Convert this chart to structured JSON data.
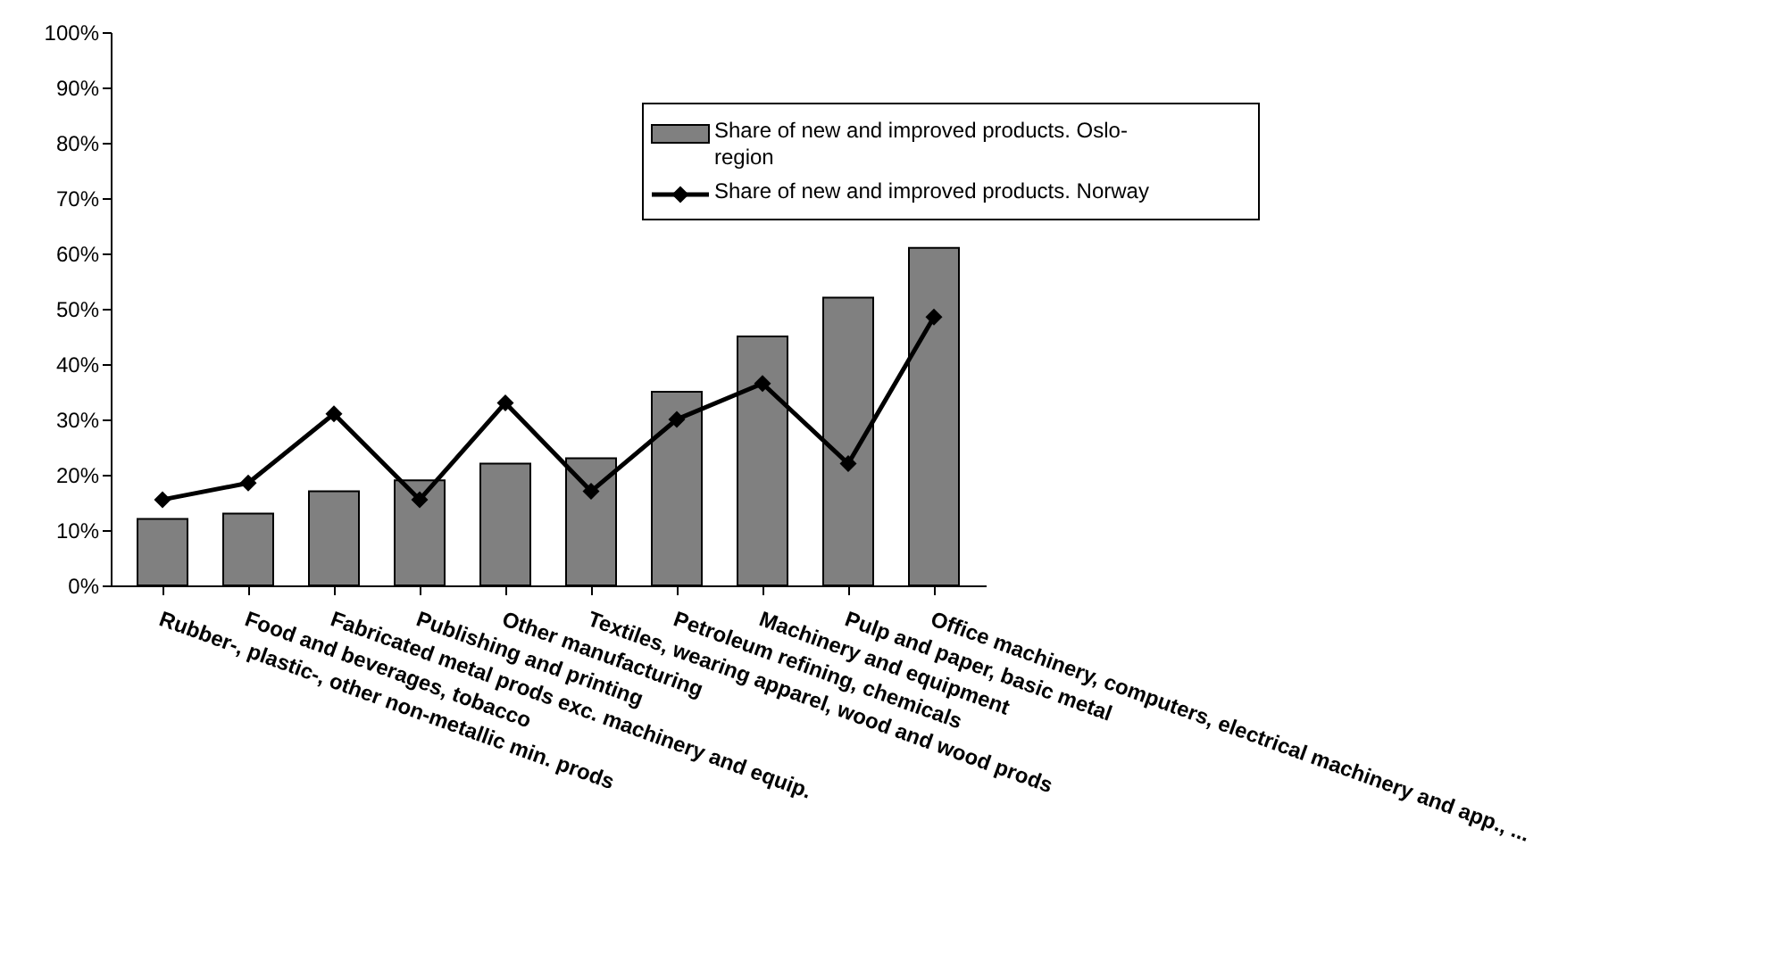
{
  "chart_data": {
    "type": "bar",
    "categories": [
      "Rubber-, plastic-, other non-metallic min. prods",
      "Food and beverages, tobacco",
      "Fabricated metal prods exc. machinery and equip.",
      "Publishing and printing",
      "Other manufacturing",
      "Textiles, wearing apparel, wood and wood prods",
      "Petroleum refining, chemicals",
      "Machinery and equipment",
      "Pulp and paper, basic metal",
      "Office machinery, computers, electrical machinery and app., ..."
    ],
    "series": [
      {
        "name": "Share of new and improved products. Oslo-region",
        "color": "#808080",
        "values": [
          12,
          13,
          17,
          19,
          22,
          23,
          35,
          45,
          52,
          61
        ]
      },
      {
        "name": "Share of new and improved products. Norway",
        "type": "line",
        "color": "#000000",
        "marker": "diamond",
        "line_style": "solid",
        "values": [
          15.5,
          18.5,
          31,
          15.5,
          33,
          17,
          30,
          36.5,
          22,
          48.5
        ]
      }
    ],
    "ylim": [
      0,
      100
    ],
    "yticks": [
      {
        "value": 0,
        "label": "0%"
      },
      {
        "value": 10,
        "label": "10%"
      },
      {
        "value": 20,
        "label": "20%"
      },
      {
        "value": 30,
        "label": "30%"
      },
      {
        "value": 40,
        "label": "40%"
      },
      {
        "value": 50,
        "label": "50%"
      },
      {
        "value": 60,
        "label": "60%"
      },
      {
        "value": 70,
        "label": "70%"
      },
      {
        "value": 80,
        "label": "80%"
      },
      {
        "value": 90,
        "label": "90%"
      },
      {
        "value": 100,
        "label": "100%"
      }
    ],
    "grid": false,
    "legend": "top right"
  }
}
